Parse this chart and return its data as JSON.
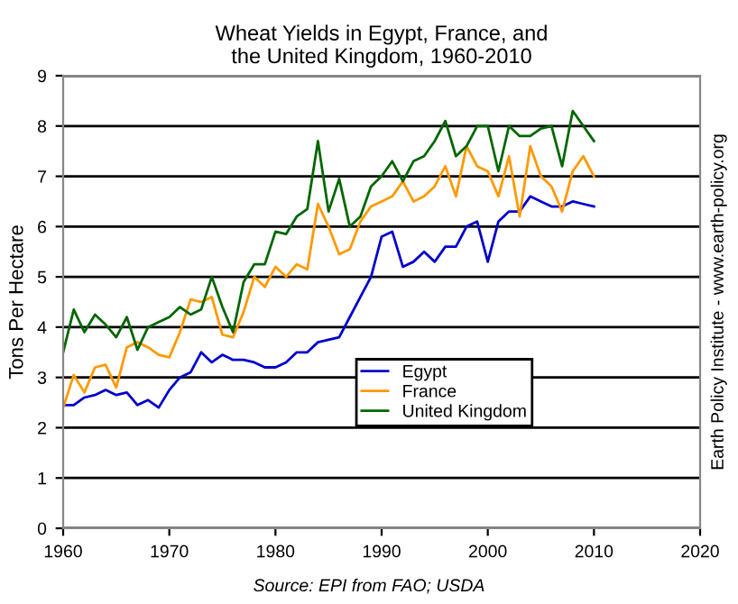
{
  "chart_data": {
    "type": "line",
    "title": "Wheat Yields in Egypt, France, and\nthe United Kingdom, 1960-2010",
    "ylabel": "Tons Per Hectare",
    "x": [
      1960,
      1961,
      1962,
      1963,
      1964,
      1965,
      1966,
      1967,
      1968,
      1969,
      1970,
      1971,
      1972,
      1973,
      1974,
      1975,
      1976,
      1977,
      1978,
      1979,
      1980,
      1981,
      1982,
      1983,
      1984,
      1985,
      1986,
      1987,
      1988,
      1989,
      1990,
      1991,
      1992,
      1993,
      1994,
      1995,
      1996,
      1997,
      1998,
      1999,
      2000,
      2001,
      2002,
      2003,
      2004,
      2005,
      2006,
      2007,
      2008,
      2009,
      2010
    ],
    "series": [
      {
        "name": "Egypt",
        "color": "#0000cc",
        "values": [
          2.45,
          2.45,
          2.6,
          2.65,
          2.75,
          2.65,
          2.7,
          2.45,
          2.55,
          2.4,
          2.75,
          3.0,
          3.1,
          3.5,
          3.3,
          3.45,
          3.35,
          3.35,
          3.3,
          3.2,
          3.2,
          3.3,
          3.5,
          3.5,
          3.7,
          3.75,
          3.8,
          4.2,
          4.6,
          5.0,
          5.8,
          5.9,
          5.2,
          5.3,
          5.5,
          5.3,
          5.6,
          5.6,
          6.0,
          6.1,
          5.3,
          6.1,
          6.3,
          6.3,
          6.6,
          6.5,
          6.4,
          6.4,
          6.5,
          6.45,
          6.4
        ]
      },
      {
        "name": "France",
        "color": "#ff9900",
        "values": [
          2.4,
          3.05,
          2.7,
          3.2,
          3.25,
          2.8,
          3.6,
          3.7,
          3.6,
          3.45,
          3.4,
          3.9,
          4.55,
          4.5,
          4.6,
          3.85,
          3.8,
          4.3,
          5.0,
          4.8,
          5.2,
          5.0,
          5.25,
          5.15,
          6.45,
          6.0,
          5.45,
          5.55,
          6.1,
          6.4,
          6.5,
          6.6,
          6.9,
          6.5,
          6.6,
          6.8,
          7.2,
          6.6,
          7.6,
          7.2,
          7.1,
          6.6,
          7.4,
          6.2,
          7.6,
          7.0,
          6.8,
          6.3,
          7.1,
          7.4,
          7.0
        ]
      },
      {
        "name": "United Kingdom",
        "color": "#006600",
        "values": [
          3.5,
          4.35,
          3.9,
          4.25,
          4.05,
          3.8,
          4.2,
          3.55,
          4.0,
          4.1,
          4.2,
          4.4,
          4.25,
          4.35,
          5.0,
          4.4,
          3.9,
          4.9,
          5.25,
          5.25,
          5.9,
          5.85,
          6.2,
          6.35,
          7.7,
          6.3,
          6.95,
          6.0,
          6.2,
          6.8,
          7.0,
          7.3,
          6.9,
          7.3,
          7.4,
          7.7,
          8.1,
          7.4,
          7.6,
          8.0,
          8.0,
          7.1,
          8.0,
          7.8,
          7.8,
          7.95,
          8.0,
          7.2,
          8.3,
          8.0,
          7.7
        ]
      }
    ],
    "xlim": [
      1960,
      2020
    ],
    "xticks": [
      1960,
      1970,
      1980,
      1990,
      2000,
      2010,
      2020
    ],
    "ylim": [
      0,
      9
    ],
    "yticks": [
      0,
      1,
      2,
      3,
      4,
      5,
      6,
      7,
      8,
      9
    ],
    "grid": "y",
    "legend": "right",
    "marker": "none",
    "line_style": "solid",
    "annotations": [
      "Source: EPI from FAO; USDA",
      "Earth Policy Institute - www.earth-policy.org"
    ]
  }
}
